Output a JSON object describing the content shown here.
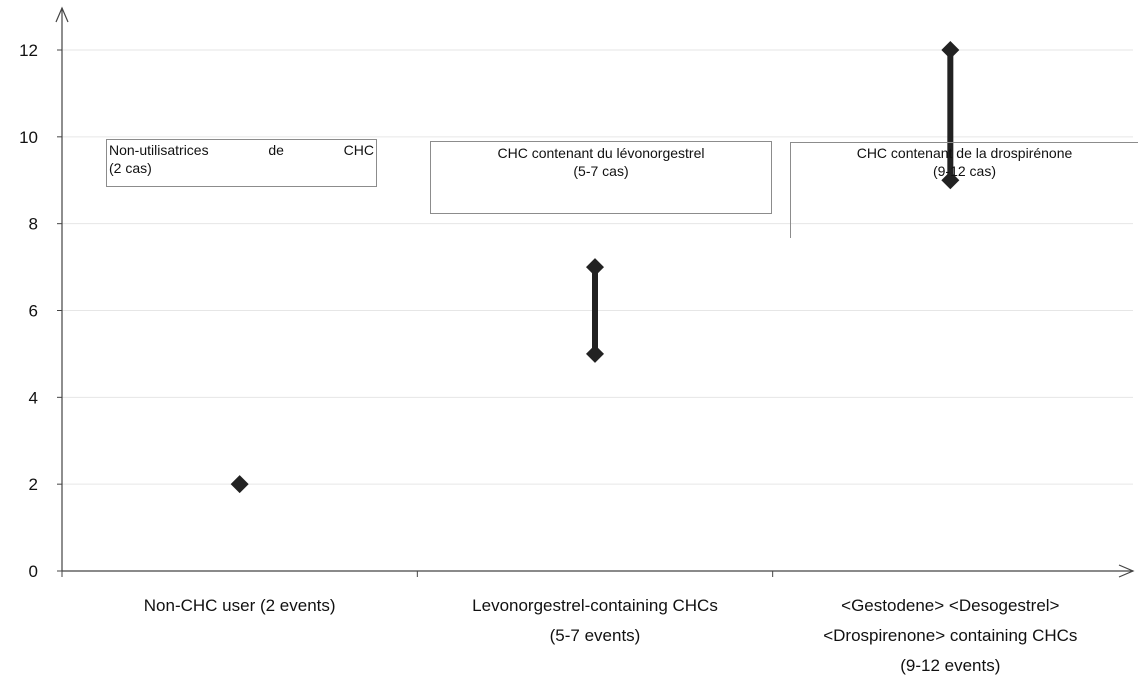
{
  "chart_data": {
    "type": "scatter",
    "subtype": "range (min-max) plot",
    "ylim": [
      0,
      12
    ],
    "yticks": [
      "0",
      "2",
      "4",
      "6",
      "8",
      "10",
      "12"
    ],
    "grid": true,
    "categories": [
      [
        "Non-CHC user (2 events)"
      ],
      [
        "Levonorgestrel-containing CHCs",
        "(5-7 events)"
      ],
      [
        "<Gestodene> <Desogestrel>",
        "<Drospirenone> containing CHCs",
        "(9-12 events)"
      ]
    ],
    "ranges": [
      {
        "min": 2,
        "max": 2
      },
      {
        "min": 5,
        "max": 7
      },
      {
        "min": 9,
        "max": 12
      }
    ],
    "annotations": [
      [
        "Non-utilisatrices de CHC",
        "(2 cas)"
      ],
      [
        "CHC contenant du lévonorgestrel",
        "(5-7 cas)"
      ],
      [
        "CHC contenant de la drospirénone",
        "(9-12 cas)"
      ]
    ],
    "colors": {
      "marker": "#222222",
      "axis": "#444444",
      "grid": "#e6e6e6"
    }
  }
}
